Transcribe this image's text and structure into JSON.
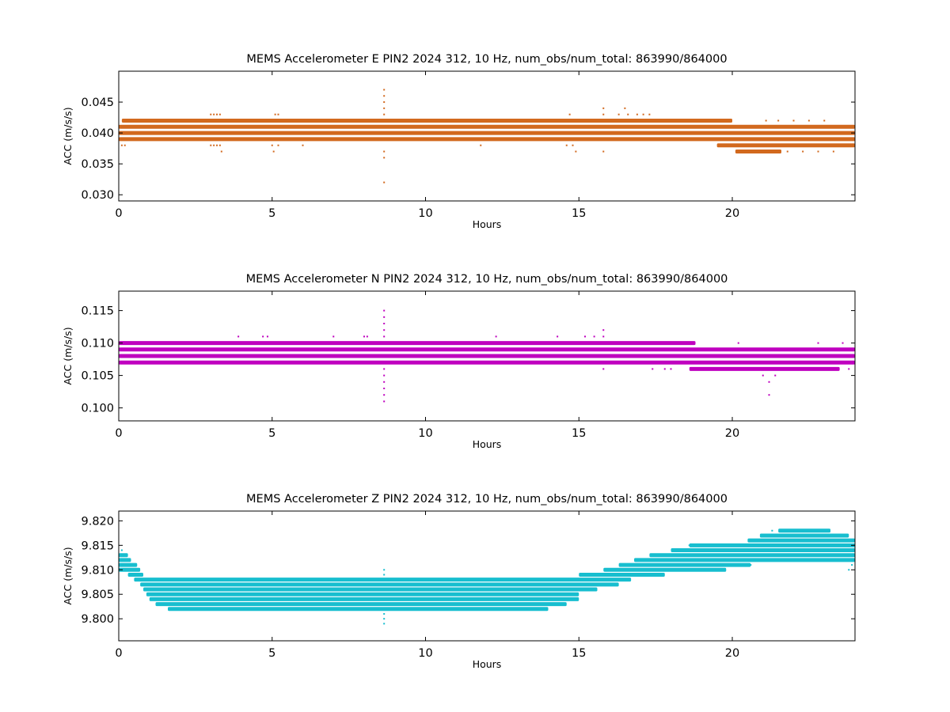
{
  "figure": {
    "charts_count": 3
  },
  "chart_data": [
    {
      "type": "scatter",
      "title": "MEMS Accelerometer E PIN2 2024 312, 10 Hz, num_obs/num_total: 863990/864000",
      "xlabel": "Hours",
      "ylabel": "ACC (m/s/s)",
      "xlim": [
        0,
        24
      ],
      "ylim": [
        0.029,
        0.05
      ],
      "xticks": [
        0,
        5,
        10,
        15,
        20
      ],
      "yticks": [
        0.03,
        0.035,
        0.04,
        0.045
      ],
      "ytick_labels": [
        "0.030",
        "0.035",
        "0.040",
        "0.045"
      ],
      "grid": false,
      "color": "#D2691E",
      "bands": [
        {
          "y": 0.042,
          "x": [
            0.1,
            20.0
          ]
        },
        {
          "y": 0.041,
          "x": [
            0.0,
            24.0
          ]
        },
        {
          "y": 0.04,
          "x": [
            0.0,
            24.0
          ]
        },
        {
          "y": 0.039,
          "x": [
            0.0,
            24.0
          ]
        },
        {
          "y": 0.038,
          "x": [
            19.5,
            24.0
          ]
        },
        {
          "y": 0.037,
          "x": [
            20.1,
            21.6
          ]
        }
      ],
      "outliers": [
        {
          "x": 8.65,
          "y": 0.047
        },
        {
          "x": 8.65,
          "y": 0.046
        },
        {
          "x": 8.65,
          "y": 0.045
        },
        {
          "x": 8.65,
          "y": 0.044
        },
        {
          "x": 8.65,
          "y": 0.043
        },
        {
          "x": 8.65,
          "y": 0.037
        },
        {
          "x": 8.65,
          "y": 0.036
        },
        {
          "x": 8.65,
          "y": 0.032
        },
        {
          "x": 3.0,
          "y": 0.043
        },
        {
          "x": 3.1,
          "y": 0.043
        },
        {
          "x": 3.2,
          "y": 0.043
        },
        {
          "x": 3.3,
          "y": 0.043
        },
        {
          "x": 3.0,
          "y": 0.038
        },
        {
          "x": 3.1,
          "y": 0.038
        },
        {
          "x": 3.2,
          "y": 0.038
        },
        {
          "x": 3.3,
          "y": 0.038
        },
        {
          "x": 3.35,
          "y": 0.037
        },
        {
          "x": 5.1,
          "y": 0.043
        },
        {
          "x": 5.2,
          "y": 0.043
        },
        {
          "x": 5.0,
          "y": 0.038
        },
        {
          "x": 5.2,
          "y": 0.038
        },
        {
          "x": 5.05,
          "y": 0.037
        },
        {
          "x": 6.0,
          "y": 0.038
        },
        {
          "x": 0.1,
          "y": 0.038
        },
        {
          "x": 0.2,
          "y": 0.038
        },
        {
          "x": 11.8,
          "y": 0.038
        },
        {
          "x": 14.7,
          "y": 0.043
        },
        {
          "x": 14.6,
          "y": 0.038
        },
        {
          "x": 14.8,
          "y": 0.038
        },
        {
          "x": 14.9,
          "y": 0.037
        },
        {
          "x": 15.8,
          "y": 0.044
        },
        {
          "x": 15.8,
          "y": 0.043
        },
        {
          "x": 15.8,
          "y": 0.037
        },
        {
          "x": 16.5,
          "y": 0.044
        },
        {
          "x": 16.3,
          "y": 0.043
        },
        {
          "x": 16.6,
          "y": 0.043
        },
        {
          "x": 16.9,
          "y": 0.043
        },
        {
          "x": 17.1,
          "y": 0.043
        },
        {
          "x": 17.3,
          "y": 0.043
        },
        {
          "x": 21.1,
          "y": 0.042
        },
        {
          "x": 21.5,
          "y": 0.042
        },
        {
          "x": 22.0,
          "y": 0.042
        },
        {
          "x": 22.5,
          "y": 0.042
        },
        {
          "x": 23.0,
          "y": 0.042
        },
        {
          "x": 21.8,
          "y": 0.037
        },
        {
          "x": 22.3,
          "y": 0.037
        },
        {
          "x": 22.8,
          "y": 0.037
        },
        {
          "x": 23.3,
          "y": 0.037
        }
      ]
    },
    {
      "type": "scatter",
      "title": "MEMS Accelerometer N PIN2 2024 312, 10 Hz, num_obs/num_total: 863990/864000",
      "xlabel": "Hours",
      "ylabel": "ACC (m/s/s)",
      "xlim": [
        0,
        24
      ],
      "ylim": [
        0.098,
        0.118
      ],
      "xticks": [
        0,
        5,
        10,
        15,
        20
      ],
      "yticks": [
        0.1,
        0.105,
        0.11,
        0.115
      ],
      "ytick_labels": [
        "0.100",
        "0.105",
        "0.110",
        "0.115"
      ],
      "grid": false,
      "color": "#BF00BF",
      "bands": [
        {
          "y": 0.11,
          "x": [
            0.0,
            18.8
          ]
        },
        {
          "y": 0.109,
          "x": [
            0.0,
            24.0
          ]
        },
        {
          "y": 0.108,
          "x": [
            0.0,
            24.0
          ]
        },
        {
          "y": 0.107,
          "x": [
            0.0,
            24.0
          ]
        },
        {
          "y": 0.106,
          "x": [
            18.6,
            23.5
          ]
        }
      ],
      "outliers": [
        {
          "x": 8.65,
          "y": 0.115
        },
        {
          "x": 8.65,
          "y": 0.114
        },
        {
          "x": 8.65,
          "y": 0.113
        },
        {
          "x": 8.65,
          "y": 0.112
        },
        {
          "x": 8.65,
          "y": 0.111
        },
        {
          "x": 8.65,
          "y": 0.106
        },
        {
          "x": 8.65,
          "y": 0.105
        },
        {
          "x": 8.65,
          "y": 0.104
        },
        {
          "x": 8.65,
          "y": 0.103
        },
        {
          "x": 8.65,
          "y": 0.102
        },
        {
          "x": 8.65,
          "y": 0.101
        },
        {
          "x": 3.9,
          "y": 0.111
        },
        {
          "x": 4.7,
          "y": 0.111
        },
        {
          "x": 4.85,
          "y": 0.111
        },
        {
          "x": 7.0,
          "y": 0.111
        },
        {
          "x": 8.0,
          "y": 0.111
        },
        {
          "x": 8.1,
          "y": 0.111
        },
        {
          "x": 12.3,
          "y": 0.111
        },
        {
          "x": 14.3,
          "y": 0.111
        },
        {
          "x": 15.2,
          "y": 0.111
        },
        {
          "x": 15.5,
          "y": 0.111
        },
        {
          "x": 15.8,
          "y": 0.112
        },
        {
          "x": 15.8,
          "y": 0.111
        },
        {
          "x": 15.8,
          "y": 0.106
        },
        {
          "x": 17.4,
          "y": 0.106
        },
        {
          "x": 17.8,
          "y": 0.106
        },
        {
          "x": 18.0,
          "y": 0.106
        },
        {
          "x": 21.0,
          "y": 0.105
        },
        {
          "x": 21.4,
          "y": 0.105
        },
        {
          "x": 21.2,
          "y": 0.104
        },
        {
          "x": 21.2,
          "y": 0.102
        },
        {
          "x": 23.8,
          "y": 0.106
        },
        {
          "x": 18.2,
          "y": 0.11
        },
        {
          "x": 18.5,
          "y": 0.11
        },
        {
          "x": 20.2,
          "y": 0.11
        },
        {
          "x": 22.8,
          "y": 0.11
        },
        {
          "x": 23.6,
          "y": 0.11
        }
      ]
    },
    {
      "type": "scatter",
      "title": "MEMS Accelerometer Z PIN2 2024 312, 10 Hz, num_obs/num_total: 863990/864000",
      "xlabel": "Hours",
      "ylabel": "ACC (m/s/s)",
      "xlim": [
        0,
        24
      ],
      "ylim": [
        9.7955,
        9.822
      ],
      "xticks": [
        0,
        5,
        10,
        15,
        20
      ],
      "yticks": [
        9.8,
        9.805,
        9.81,
        9.815,
        9.82
      ],
      "ytick_labels": [
        "9.800",
        "9.805",
        "9.810",
        "9.815",
        "9.820"
      ],
      "grid": false,
      "color": "#17BECF",
      "bands": [
        {
          "y": 9.818,
          "x": [
            21.5,
            23.2
          ]
        },
        {
          "y": 9.817,
          "x": [
            20.9,
            23.8
          ]
        },
        {
          "y": 9.816,
          "x": [
            20.5,
            24.0
          ]
        },
        {
          "y": 9.815,
          "x": [
            18.6,
            24.0
          ]
        },
        {
          "y": 9.814,
          "x": [
            18.0,
            24.0
          ]
        },
        {
          "y": 9.813,
          "x": [
            17.3,
            24.0
          ]
        },
        {
          "y": 9.812,
          "x": [
            16.8,
            24.0
          ]
        },
        {
          "y": 9.811,
          "x": [
            16.3,
            20.6
          ]
        },
        {
          "y": 9.81,
          "x": [
            15.8,
            19.8
          ]
        },
        {
          "y": 9.809,
          "x": [
            15.0,
            17.8
          ]
        },
        {
          "y": 9.808,
          "x": [
            0.5,
            16.7
          ]
        },
        {
          "y": 9.807,
          "x": [
            0.7,
            16.3
          ]
        },
        {
          "y": 9.806,
          "x": [
            0.8,
            15.6
          ]
        },
        {
          "y": 9.805,
          "x": [
            0.9,
            15.0
          ]
        },
        {
          "y": 9.804,
          "x": [
            1.0,
            15.0
          ]
        },
        {
          "y": 9.803,
          "x": [
            1.2,
            14.6
          ]
        },
        {
          "y": 9.802,
          "x": [
            1.6,
            14.0
          ]
        },
        {
          "y": 9.813,
          "x": [
            0.0,
            0.3
          ]
        },
        {
          "y": 9.812,
          "x": [
            0.0,
            0.4
          ]
        },
        {
          "y": 9.811,
          "x": [
            0.0,
            0.6
          ]
        },
        {
          "y": 9.81,
          "x": [
            0.0,
            0.7
          ]
        },
        {
          "y": 9.809,
          "x": [
            0.3,
            0.8
          ]
        }
      ],
      "outliers": [
        {
          "x": 8.65,
          "y": 9.81
        },
        {
          "x": 8.65,
          "y": 9.809
        },
        {
          "x": 8.65,
          "y": 9.801
        },
        {
          "x": 8.65,
          "y": 9.8
        },
        {
          "x": 8.65,
          "y": 9.799
        },
        {
          "x": 0.1,
          "y": 9.814
        },
        {
          "x": 3.9,
          "y": 9.808
        },
        {
          "x": 10.0,
          "y": 9.808
        },
        {
          "x": 3.3,
          "y": 9.802
        },
        {
          "x": 3.6,
          "y": 9.802
        },
        {
          "x": 4.1,
          "y": 9.802
        },
        {
          "x": 5.8,
          "y": 9.802
        },
        {
          "x": 6.3,
          "y": 9.802
        },
        {
          "x": 11.5,
          "y": 9.802
        },
        {
          "x": 13.3,
          "y": 9.802
        },
        {
          "x": 8.0,
          "y": 9.803
        },
        {
          "x": 9.4,
          "y": 9.803
        },
        {
          "x": 10.3,
          "y": 9.803
        },
        {
          "x": 12.5,
          "y": 9.803
        },
        {
          "x": 18.6,
          "y": 9.815
        },
        {
          "x": 20.1,
          "y": 9.814
        },
        {
          "x": 20.6,
          "y": 9.811
        },
        {
          "x": 23.8,
          "y": 9.81
        },
        {
          "x": 23.9,
          "y": 9.811
        },
        {
          "x": 21.3,
          "y": 9.818
        },
        {
          "x": 22.0,
          "y": 9.818
        },
        {
          "x": 22.3,
          "y": 9.818
        }
      ]
    }
  ]
}
